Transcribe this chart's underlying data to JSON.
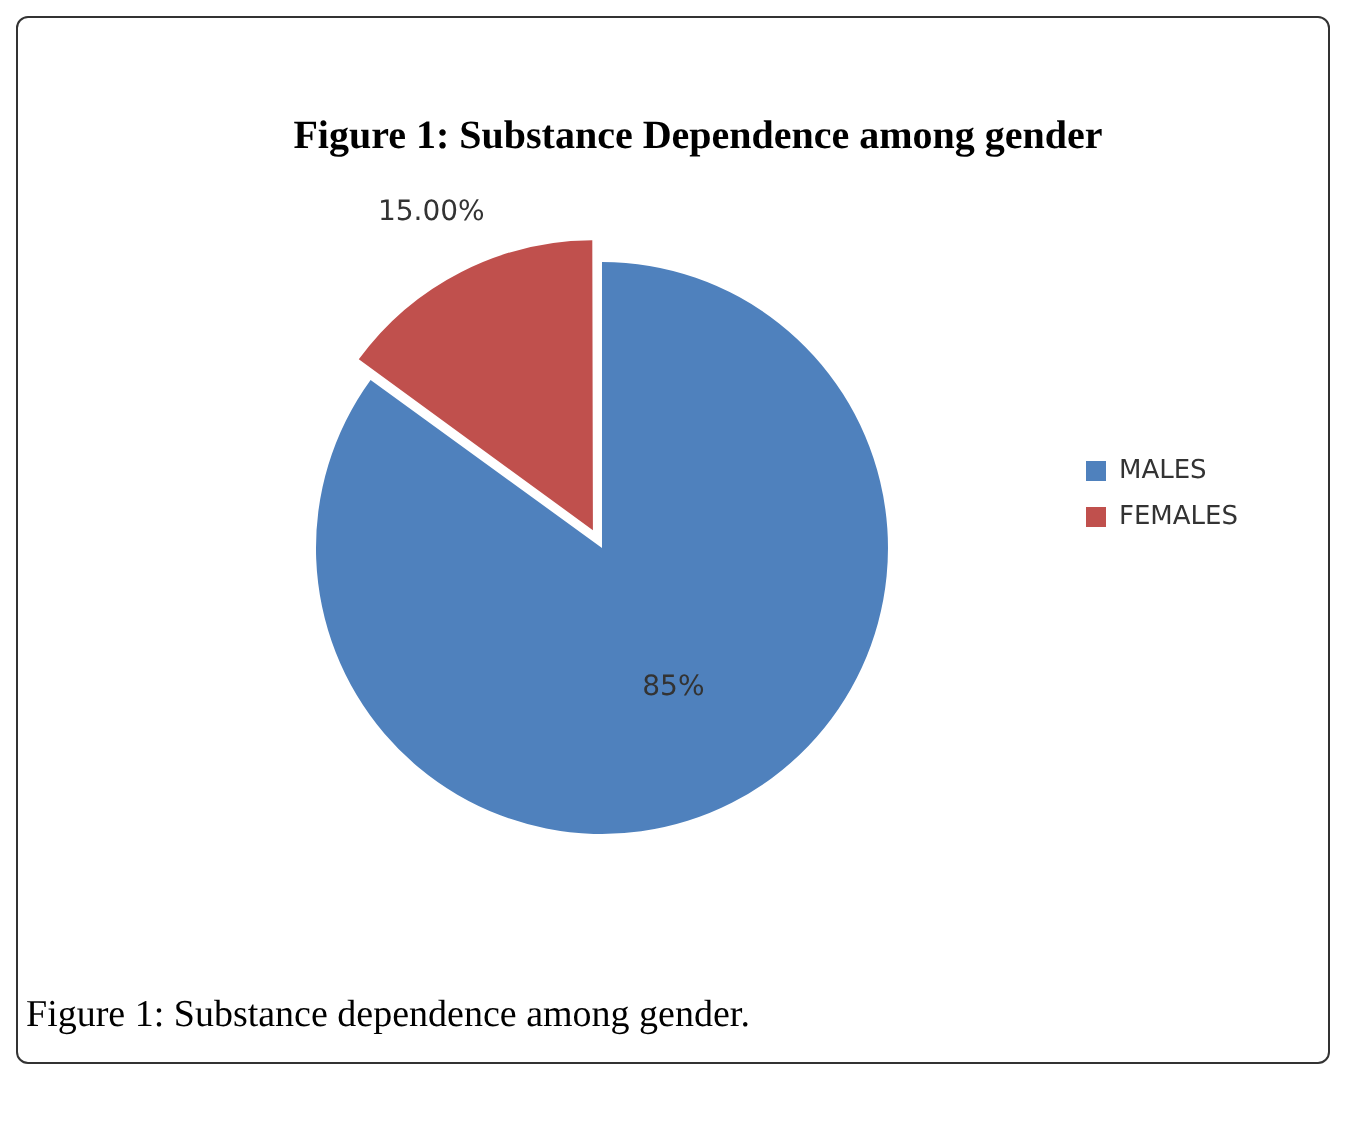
{
  "chart_data": {
    "type": "pie",
    "title": "Figure 1: Substance Dependence among gender",
    "categories": [
      "MALES",
      "FEMALES"
    ],
    "values": [
      85,
      15
    ],
    "colors": [
      "#4f81bd",
      "#c0504d"
    ],
    "value_labels": [
      "85%",
      "15.00%"
    ],
    "legend": "right",
    "annotations": [
      "Figure 1: Substance dependence among gender."
    ]
  }
}
